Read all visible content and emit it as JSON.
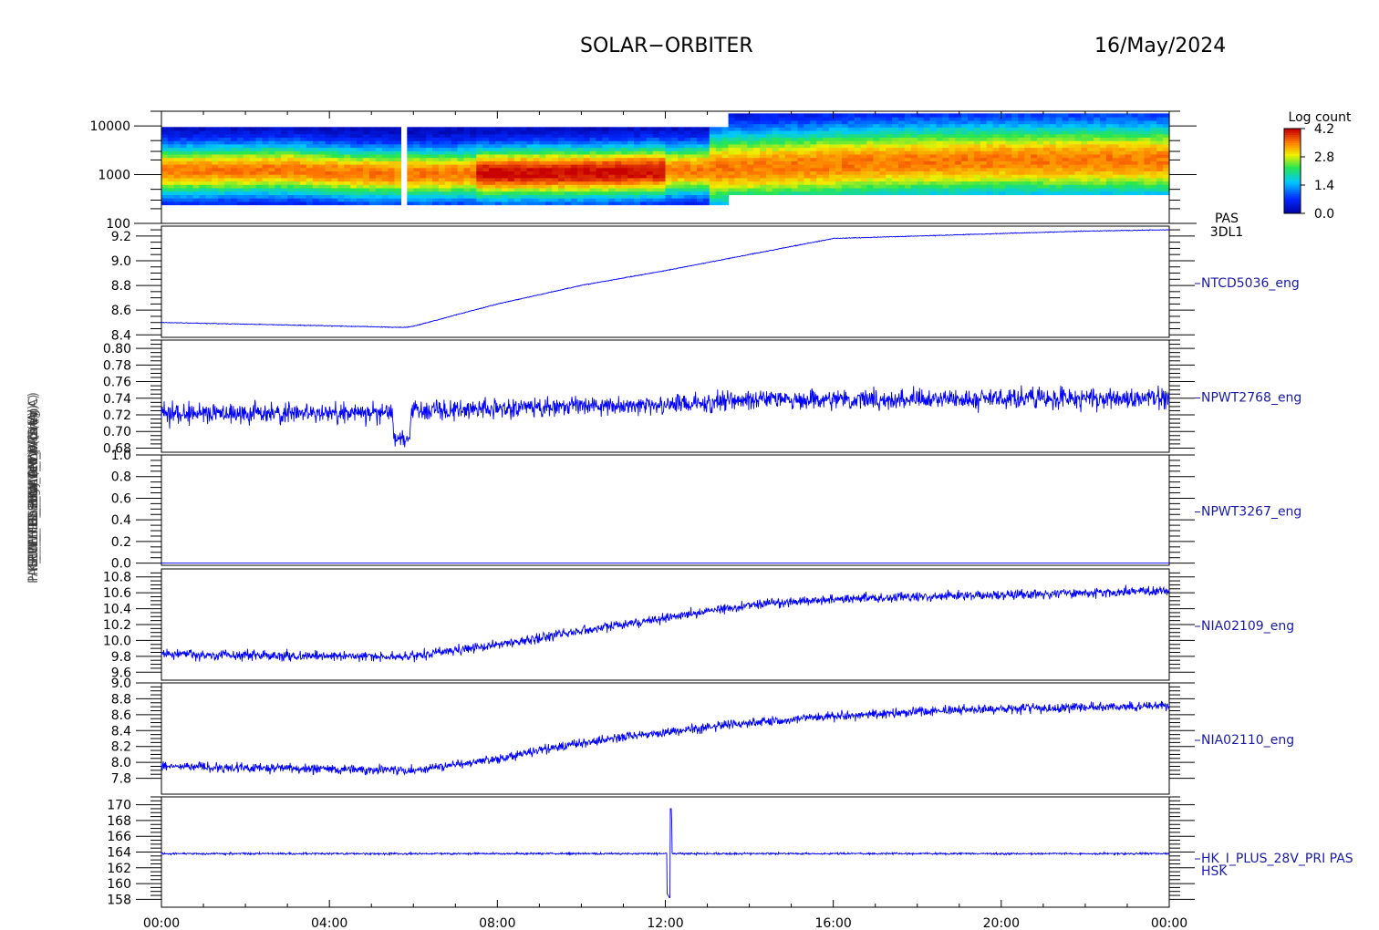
{
  "header": {
    "title": "SOLAR−ORBITER",
    "date": "16/May/2024"
  },
  "y_axis_titles": [
    "Energy (eV)",
    "PAS_TEMP1 Box Temp (Deg C)",
    "RPW_TDS_BWM_PWRA (V)",
    "RPW_TDS_CALI_DAC (V)",
    "EUI_HRI_FUVLAM_V (mA)",
    "EUI_FSI_HRMON_I (mA)",
    "HK_I_PLUS_28V_PRI PAS (mA)"
  ],
  "colors": {
    "line": "#0000ff",
    "label": "#1a1aaa",
    "axis": "#000000"
  },
  "chart_data": [
    {
      "type": "heatmap",
      "panel": "PAS 3DL1 energy spectrogram",
      "ylabel": "Energy (eV)",
      "yscale": "log",
      "ylim": [
        100,
        20000
      ],
      "yticks": [
        100,
        1000,
        10000
      ],
      "ytick_labels": [
        "100",
        "1000",
        "10000"
      ],
      "instrument_label": [
        "PAS",
        "3DL1"
      ],
      "colorbar": {
        "title": "Log count",
        "min": 0.0,
        "max": 4.2,
        "tick_labels": [
          "4.2",
          "2.8",
          "1.4",
          "0.0"
        ]
      },
      "data_gap_hours": [
        5.65,
        5.85
      ],
      "peak_energy_track": {
        "t": [
          0,
          3,
          4.5,
          6,
          9,
          11,
          13,
          15,
          17,
          20,
          24
        ],
        "eV": [
          1200,
          1300,
          1100,
          1050,
          1100,
          1150,
          1300,
          1500,
          1800,
          2000,
          2000
        ]
      }
    },
    {
      "type": "line",
      "series": [
        {
          "name": "NTCD5036_eng"
        }
      ],
      "ylim": [
        8.38,
        9.28
      ],
      "yticks": [
        8.4,
        8.6,
        8.8,
        9.0,
        9.2
      ],
      "ytick_labels": [
        "8.4",
        "8.6",
        "8.8",
        "9.0",
        "9.2"
      ],
      "keyframes": {
        "t": [
          0,
          3,
          5.8,
          6,
          8,
          10,
          12,
          14,
          16,
          18,
          20,
          22,
          24
        ],
        "y": [
          8.5,
          8.48,
          8.46,
          8.47,
          8.65,
          8.8,
          8.92,
          9.05,
          9.18,
          9.2,
          9.22,
          9.24,
          9.25
        ]
      },
      "noise": 0.003
    },
    {
      "type": "line",
      "series": [
        {
          "name": "NPWT2768_eng"
        }
      ],
      "ylim": [
        0.675,
        0.81
      ],
      "yticks": [
        0.68,
        0.7,
        0.72,
        0.74,
        0.76,
        0.78,
        0.8
      ],
      "ytick_labels": [
        "0.68",
        "0.70",
        "0.72",
        "0.74",
        "0.76",
        "0.78",
        "0.80"
      ],
      "keyframes": {
        "t": [
          0,
          5.5,
          5.55,
          5.9,
          5.95,
          8,
          12,
          14,
          24
        ],
        "y": [
          0.722,
          0.722,
          0.69,
          0.69,
          0.725,
          0.728,
          0.732,
          0.738,
          0.74
        ]
      },
      "noise": 0.012
    },
    {
      "type": "line",
      "series": [
        {
          "name": "NPWT3267_eng"
        }
      ],
      "ylim": [
        -0.02,
        1.0
      ],
      "yticks": [
        0.0,
        0.2,
        0.4,
        0.6,
        0.8,
        1.0
      ],
      "ytick_labels": [
        "0.0",
        "0.2",
        "0.4",
        "0.6",
        "0.8",
        "1.0"
      ],
      "keyframes": {
        "t": [
          0,
          24
        ],
        "y": [
          0.0,
          0.0
        ]
      },
      "noise": 0.0
    },
    {
      "type": "line",
      "series": [
        {
          "name": "NIA02109_eng"
        }
      ],
      "ylim": [
        9.5,
        10.9
      ],
      "yticks": [
        9.6,
        9.8,
        10.0,
        10.2,
        10.4,
        10.6,
        10.8
      ],
      "ytick_labels": [
        "9.6",
        "9.8",
        "10.0",
        "10.2",
        "10.4",
        "10.6",
        "10.8"
      ],
      "keyframes": {
        "t": [
          0,
          6,
          8,
          10,
          12,
          14,
          16,
          18,
          20,
          22,
          24
        ],
        "y": [
          9.82,
          9.8,
          9.95,
          10.12,
          10.28,
          10.45,
          10.52,
          10.55,
          10.57,
          10.6,
          10.62
        ]
      },
      "noise": 0.06
    },
    {
      "type": "line",
      "series": [
        {
          "name": "NIA02110_eng"
        }
      ],
      "ylim": [
        7.6,
        9.0
      ],
      "yticks": [
        7.8,
        8.0,
        8.2,
        8.4,
        8.6,
        8.8,
        9.0
      ],
      "ytick_labels": [
        "7.8",
        "8.0",
        "8.2",
        "8.4",
        "8.6",
        "8.8",
        "9.0"
      ],
      "keyframes": {
        "t": [
          0,
          6,
          8,
          10,
          12,
          14,
          16,
          18,
          20,
          22,
          24
        ],
        "y": [
          7.95,
          7.9,
          8.05,
          8.25,
          8.38,
          8.5,
          8.58,
          8.64,
          8.67,
          8.69,
          8.71
        ]
      },
      "noise": 0.06
    },
    {
      "type": "line",
      "series": [
        {
          "name": "HK_I_PLUS_28V_PRI PAS"
        }
      ],
      "extra_label": "HSK",
      "ylim": [
        157,
        171
      ],
      "yticks": [
        158,
        160,
        162,
        164,
        166,
        168,
        170
      ],
      "ytick_labels": [
        "158",
        "160",
        "162",
        "164",
        "166",
        "168",
        "170"
      ],
      "keyframes": {
        "t": [
          0,
          24
        ],
        "y": [
          163.8,
          163.8
        ]
      },
      "spike": {
        "t": 12.1,
        "min": 158.2,
        "max": 169.5
      },
      "noise": 0.12
    }
  ],
  "x_axis": {
    "range_hours": [
      0,
      24
    ],
    "ticks": [
      0,
      4,
      8,
      12,
      16,
      20,
      24
    ],
    "tick_labels": [
      "00:00",
      "04:00",
      "08:00",
      "12:00",
      "16:00",
      "20:00",
      "00:00"
    ]
  }
}
